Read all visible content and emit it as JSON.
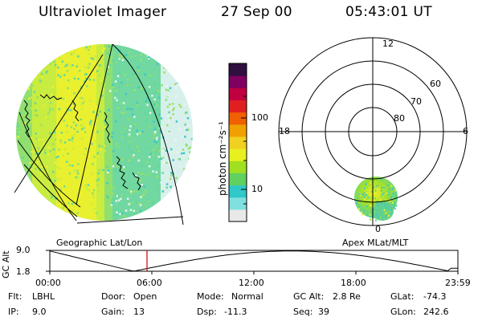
{
  "header": {
    "instrument": "Ultraviolet Imager",
    "date": "27 Sep 00",
    "time": "05:43:01 UT"
  },
  "left_panel": {
    "caption": "Geographic Lat/Lon"
  },
  "right_panel": {
    "caption": "Apex MLat/MLT",
    "mlt_labels": [
      "12",
      "18",
      "6",
      "0"
    ],
    "lat_labels": [
      "60",
      "70",
      "80"
    ]
  },
  "colorbar": {
    "unit_label": "photon cm⁻²s⁻¹",
    "tick_labels": [
      "100",
      "10"
    ],
    "scale": "log",
    "colors": [
      "#e8e8e8",
      "#80e0e0",
      "#30c8c8",
      "#60d060",
      "#a0e020",
      "#e8f020",
      "#f0d020",
      "#f0a000",
      "#f06000",
      "#e02020",
      "#c00040",
      "#800060",
      "#301040"
    ]
  },
  "timeline": {
    "ylabel": "GC Alt",
    "y_max_label": "9.0",
    "y_min_label": "1.8",
    "x_labels": [
      "00:00",
      "06:00",
      "12:00",
      "18:00",
      "23:59"
    ],
    "current_time_marker": "05:43"
  },
  "status": {
    "flt": {
      "label": "Flt:",
      "value": "LBHL"
    },
    "ip": {
      "label": "IP:",
      "value": "9.0"
    },
    "door": {
      "label": "Door:",
      "value": "Open"
    },
    "gain": {
      "label": "Gain:",
      "value": "13"
    },
    "mode": {
      "label": "Mode:",
      "value": "Normal"
    },
    "dsp": {
      "label": "Dsp:",
      "value": "-11.3"
    },
    "gcalt": {
      "label": "GC Alt:",
      "value": "2.8 Re"
    },
    "seq": {
      "label": "Seq:",
      "value": "39"
    },
    "glat": {
      "label": "GLat:",
      "value": "-74.3"
    },
    "glon": {
      "label": "GLon:",
      "value": "242.6"
    }
  }
}
